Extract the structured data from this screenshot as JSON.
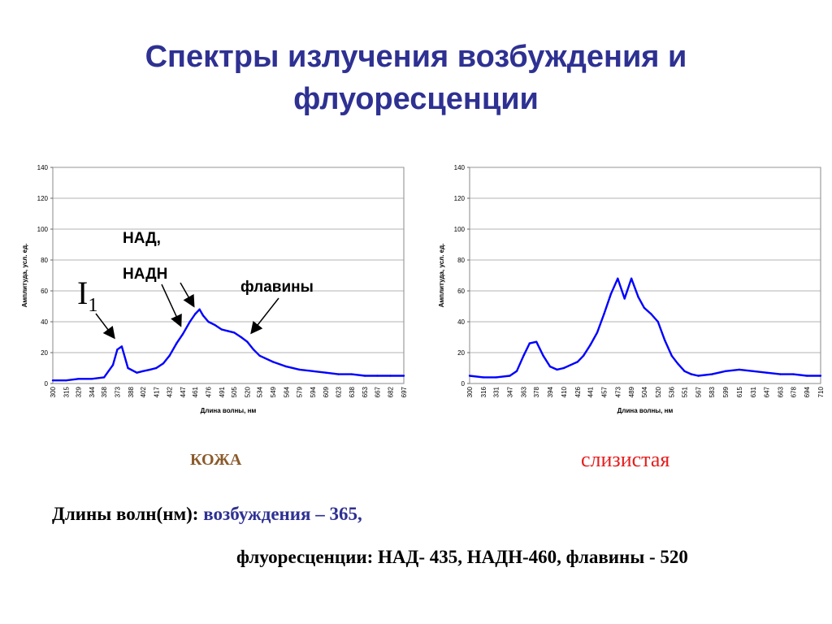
{
  "slide": {
    "title_line1": "Спектры излучения возбуждения и",
    "title_line2": "флуоресценции",
    "annotations": {
      "nad": "НАД,",
      "nadh": "НАДН",
      "flavins": "флавины",
      "i1_main": "I",
      "i1_sub": "1"
    },
    "label_left": "КОЖА",
    "label_right": "слизистая",
    "wavelengths_prefix": "Длины волн(нм): ",
    "wavelengths_excitation": "возбуждения – 365,",
    "fluorescence_line": "флуоресценции:  НАД- 435, НАДН-460, флавины - 520"
  },
  "colors": {
    "title": "#2e3192",
    "series": "#0000ff",
    "label_left": "#8b5a2b",
    "label_right": "#e41e1e"
  },
  "chart_data": [
    {
      "type": "line",
      "xlabel": "Длина волны, нм",
      "ylabel": "Амплитуда, усл. ед.",
      "ylim": [
        0,
        140
      ],
      "yticks": [
        0,
        20,
        40,
        60,
        80,
        100,
        120,
        140
      ],
      "grid": "horizontal",
      "xticks": [
        "300",
        "315",
        "329",
        "344",
        "358",
        "373",
        "388",
        "402",
        "417",
        "432",
        "447",
        "461",
        "476",
        "491",
        "505",
        "520",
        "534",
        "549",
        "564",
        "579",
        "594",
        "609",
        "623",
        "638",
        "653",
        "667",
        "682",
        "697"
      ],
      "x": [
        300,
        315,
        329,
        344,
        358,
        368,
        373,
        378,
        385,
        395,
        402,
        410,
        417,
        425,
        432,
        440,
        447,
        455,
        461,
        466,
        470,
        476,
        483,
        491,
        498,
        505,
        513,
        520,
        527,
        534,
        549,
        564,
        579,
        594,
        609,
        623,
        638,
        653,
        667,
        682,
        697
      ],
      "y": [
        2,
        2,
        3,
        3,
        4,
        12,
        22,
        24,
        10,
        7,
        8,
        9,
        10,
        13,
        18,
        26,
        32,
        40,
        45,
        48,
        44,
        40,
        38,
        35,
        34,
        33,
        30,
        27,
        22,
        18,
        14,
        11,
        9,
        8,
        7,
        6,
        6,
        5,
        5,
        5,
        5
      ]
    },
    {
      "type": "line",
      "xlabel": "Длина волны, нм",
      "ylabel": "Амплитуда, усл. ед.",
      "ylim": [
        0,
        140
      ],
      "yticks": [
        0,
        20,
        40,
        60,
        80,
        100,
        120,
        140
      ],
      "grid": "horizontal",
      "xticks": [
        "300",
        "316",
        "331",
        "347",
        "363",
        "378",
        "394",
        "410",
        "426",
        "441",
        "457",
        "473",
        "489",
        "504",
        "520",
        "536",
        "551",
        "567",
        "583",
        "599",
        "615",
        "631",
        "647",
        "663",
        "678",
        "694",
        "710"
      ],
      "x": [
        300,
        316,
        331,
        347,
        355,
        363,
        370,
        378,
        386,
        394,
        402,
        410,
        418,
        426,
        433,
        441,
        449,
        457,
        465,
        473,
        481,
        489,
        497,
        504,
        512,
        520,
        528,
        536,
        543,
        551,
        559,
        567,
        583,
        599,
        615,
        631,
        647,
        663,
        678,
        694,
        710
      ],
      "y": [
        5,
        4,
        4,
        5,
        8,
        18,
        26,
        27,
        18,
        11,
        9,
        10,
        12,
        14,
        18,
        25,
        33,
        45,
        58,
        68,
        55,
        68,
        56,
        49,
        45,
        40,
        28,
        18,
        13,
        8,
        6,
        5,
        6,
        8,
        9,
        8,
        7,
        6,
        6,
        5,
        5
      ]
    }
  ]
}
